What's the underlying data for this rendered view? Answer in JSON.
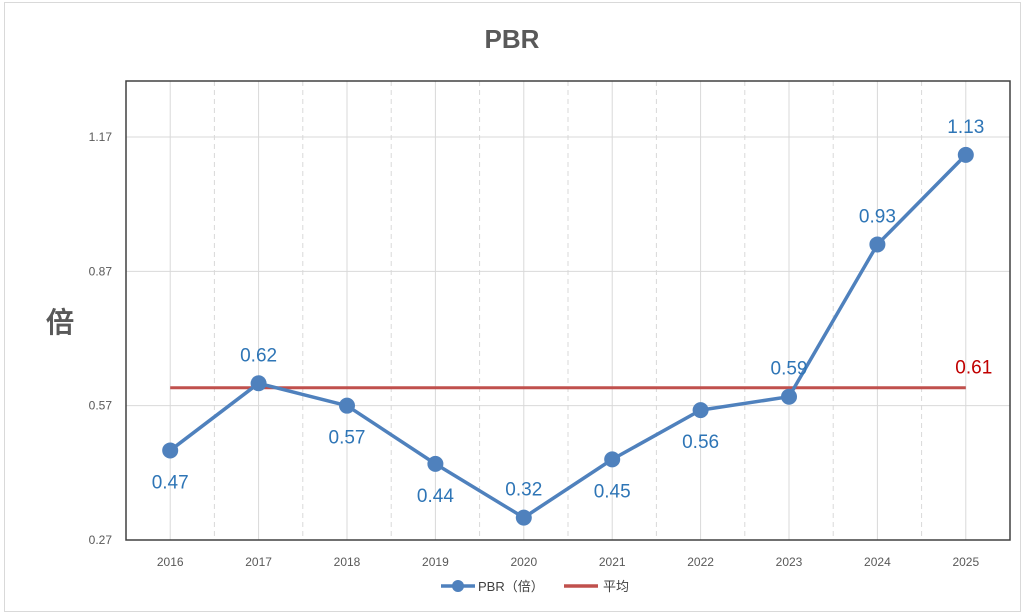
{
  "chart_data": {
    "type": "line",
    "title": "PBR",
    "ylabel": "倍",
    "xlabel": "",
    "categories": [
      "2016",
      "2017",
      "2018",
      "2019",
      "2020",
      "2021",
      "2022",
      "2023",
      "2024",
      "2025"
    ],
    "series": [
      {
        "name": "PBR（倍）",
        "values": [
          0.47,
          0.62,
          0.57,
          0.44,
          0.32,
          0.45,
          0.56,
          0.59,
          0.93,
          1.13
        ],
        "color": "#4F81BD",
        "label_positions": [
          "below",
          "above",
          "below",
          "below",
          "above",
          "below",
          "below",
          "above",
          "above",
          "above"
        ],
        "label_color": "#2E75B6"
      },
      {
        "name": "平均",
        "values": [
          0.61,
          0.61,
          0.61,
          0.61,
          0.61,
          0.61,
          0.61,
          0.61,
          0.61,
          0.61
        ],
        "color": "#C0504D",
        "label": "0.61",
        "label_color": "#C00000"
      }
    ],
    "yticks": [
      "0.27",
      "0.57",
      "0.87",
      "1.17"
    ],
    "ytick_values": [
      0.27,
      0.57,
      0.87,
      1.17
    ],
    "ylim": [
      0.27,
      1.295
    ],
    "grid": true,
    "legend": "bottom"
  }
}
